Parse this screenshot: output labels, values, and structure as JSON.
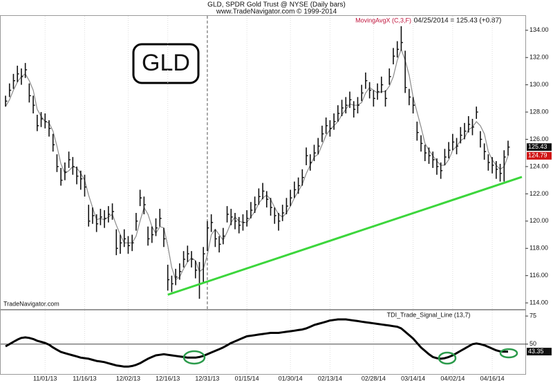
{
  "chart_data": [
    {
      "type": "ohlc",
      "title": "GLD,  SPDR Gold Trust @ NYSE  (Daily bars)",
      "subtitle": "www.TradeNavigator.com © 1999-2014",
      "symbol_box": "GLD",
      "watermark": "TradeNavigator.com",
      "last_label": "04/25/2014 = 125.43 (+0.87)",
      "bar_color": "#111111",
      "ylim": [
        113.6,
        134.8
      ],
      "yticks": [
        {
          "value": 114,
          "label": "114.00"
        },
        {
          "value": 116,
          "label": "116.00"
        },
        {
          "value": 118,
          "label": "118.00"
        },
        {
          "value": 120,
          "label": "120.00"
        },
        {
          "value": 122,
          "label": "122.00"
        },
        {
          "value": 124,
          "label": "124.00"
        },
        {
          "value": 126,
          "label": "126.00"
        },
        {
          "value": 128,
          "label": "128.00"
        },
        {
          "value": 130,
          "label": "130.00"
        },
        {
          "value": 132,
          "label": "132.00"
        },
        {
          "value": 134,
          "label": "134.00"
        }
      ],
      "high": [
        129.2,
        130.1,
        130.8,
        131.4,
        131.2,
        131.6,
        130.1,
        129.2,
        127.8,
        128.0,
        127.9,
        127.4,
        126.4,
        124.9,
        123.9,
        124.3,
        125.1,
        124.7,
        124.0,
        123.7,
        123.4,
        121.2,
        121.0,
        120.5,
        120.9,
        120.8,
        121.1,
        121.3,
        119.4,
        119.0,
        119.4,
        118.9,
        119.0,
        120.6,
        122.3,
        121.8,
        119.6,
        119.6,
        120.2,
        120.9,
        119.5,
        116.8,
        116.0,
        116.5,
        116.9,
        117.8,
        118.2,
        117.8,
        117.1,
        117.0,
        118.1,
        120.0,
        120.5,
        119.4,
        118.9,
        119.5,
        121.1,
        120.9,
        120.6,
        120.3,
        120.5,
        120.8,
        121.4,
        121.8,
        122.4,
        122.8,
        122.2,
        121.7,
        121.0,
        120.6,
        121.2,
        121.7,
        122.3,
        122.9,
        123.2,
        123.8,
        125.4,
        124.9,
        125.6,
        126.1,
        127.0,
        127.6,
        127.4,
        127.9,
        128.5,
        128.9,
        129.1,
        129.5,
        128.8,
        129.1,
        130.0,
        130.9,
        130.2,
        129.6,
        130.1,
        130.6,
        129.6,
        131.2,
        132.7,
        133.2,
        134.3,
        132.5,
        129.7,
        129.1,
        127.3,
        126.3,
        125.6,
        125.4,
        125.1,
        124.6,
        124.3,
        125.3,
        125.8,
        126.4,
        126.1,
        126.9,
        127.2,
        127.7,
        127.5,
        128.4,
        126.6,
        125.7,
        124.9,
        124.7,
        124.4,
        124.2,
        125.2,
        125.9
      ],
      "low": [
        128.4,
        129.1,
        129.7,
        130.2,
        130.0,
        130.5,
        128.7,
        127.9,
        126.6,
        126.9,
        126.8,
        126.2,
        125.1,
        123.6,
        122.6,
        123.0,
        123.9,
        123.4,
        122.7,
        122.3,
        121.8,
        119.6,
        119.8,
        119.2,
        119.7,
        119.5,
        119.9,
        120.1,
        117.5,
        117.6,
        118.1,
        117.6,
        117.8,
        119.3,
        121.1,
        120.5,
        118.2,
        118.4,
        118.9,
        119.6,
        118.1,
        114.9,
        114.8,
        115.3,
        115.7,
        116.6,
        117.0,
        116.6,
        115.8,
        114.3,
        115.5,
        117.8,
        119.2,
        118.1,
        117.7,
        118.3,
        119.9,
        119.7,
        119.4,
        119.1,
        119.3,
        119.6,
        120.2,
        120.6,
        121.2,
        121.6,
        121.0,
        120.4,
        119.8,
        119.3,
        120.0,
        120.5,
        121.1,
        121.7,
        122.0,
        122.6,
        124.1,
        123.7,
        124.4,
        124.9,
        125.8,
        126.4,
        126.2,
        126.7,
        127.3,
        127.7,
        127.9,
        128.3,
        127.6,
        127.9,
        128.8,
        129.7,
        129.0,
        128.4,
        128.9,
        129.4,
        128.4,
        130.0,
        131.5,
        132.0,
        132.5,
        129.4,
        128.5,
        127.9,
        125.9,
        125.1,
        124.4,
        124.2,
        123.9,
        123.4,
        123.1,
        124.1,
        124.6,
        125.2,
        124.9,
        125.7,
        126.0,
        126.5,
        126.3,
        127.5,
        125.4,
        124.5,
        123.7,
        123.5,
        123.1,
        122.9,
        122.9,
        124.8
      ],
      "close": [
        128.8,
        129.6,
        130.3,
        130.8,
        130.6,
        131.1,
        129.2,
        128.5,
        127.0,
        127.5,
        127.3,
        126.8,
        125.6,
        124.0,
        123.0,
        123.6,
        124.5,
        124.0,
        123.3,
        123.1,
        122.5,
        120.0,
        120.4,
        119.8,
        120.3,
        120.2,
        120.5,
        120.7,
        118.0,
        118.4,
        118.7,
        118.2,
        118.4,
        120.0,
        121.7,
        121.2,
        118.7,
        119.0,
        119.5,
        120.2,
        118.7,
        115.7,
        115.4,
        115.9,
        116.3,
        117.2,
        117.6,
        117.2,
        116.4,
        115.4,
        117.6,
        119.5,
        119.9,
        118.7,
        118.3,
        118.9,
        120.5,
        120.3,
        120.0,
        119.7,
        119.9,
        120.2,
        120.8,
        121.2,
        121.8,
        122.2,
        121.6,
        121.0,
        120.4,
        120.0,
        120.6,
        121.1,
        121.7,
        122.3,
        122.6,
        123.2,
        124.8,
        124.3,
        125.0,
        125.5,
        126.4,
        127.0,
        126.8,
        127.3,
        127.9,
        128.3,
        128.5,
        128.9,
        128.2,
        128.5,
        129.4,
        130.3,
        129.6,
        129.0,
        129.5,
        130.0,
        129.0,
        130.6,
        132.1,
        132.6,
        133.1,
        129.8,
        129.1,
        128.5,
        126.5,
        125.7,
        125.0,
        124.8,
        124.5,
        124.0,
        123.7,
        124.7,
        125.2,
        125.8,
        125.5,
        126.3,
        126.6,
        127.1,
        126.9,
        128.0,
        126.0,
        125.1,
        124.3,
        124.1,
        123.8,
        123.5,
        124.7,
        125.43
      ],
      "series": [
        {
          "name": "MovingAvgX (C,3,F)",
          "color": "#8a8a8a",
          "values": [
            128.4,
            128.9,
            129.6,
            130.2,
            130.6,
            130.8,
            130.3,
            129.6,
            128.2,
            127.7,
            127.3,
            127.2,
            126.6,
            125.5,
            124.2,
            123.5,
            123.7,
            124.0,
            123.9,
            123.5,
            123.0,
            121.9,
            121.0,
            120.1,
            120.2,
            120.1,
            120.3,
            120.5,
            119.7,
            119.0,
            118.4,
            118.4,
            118.4,
            118.9,
            120.0,
            121.0,
            120.5,
            119.6,
            119.1,
            119.6,
            119.5,
            118.2,
            116.6,
            115.7,
            115.9,
            116.5,
            117.0,
            117.3,
            117.1,
            116.3,
            116.5,
            117.5,
            119.0,
            119.4,
            119.0,
            118.6,
            119.2,
            119.9,
            120.3,
            120.0,
            119.9,
            119.9,
            120.3,
            120.7,
            121.3,
            121.7,
            121.9,
            121.6,
            121.0,
            120.5,
            120.3,
            120.6,
            121.1,
            121.7,
            122.2,
            122.7,
            123.5,
            124.1,
            124.7,
            124.9,
            125.6,
            126.3,
            126.7,
            127.0,
            127.3,
            127.8,
            128.2,
            128.6,
            128.5,
            128.5,
            128.7,
            129.4,
            129.8,
            129.6,
            129.4,
            129.5,
            129.5,
            129.9,
            130.6,
            131.8,
            132.6,
            131.8,
            130.7,
            129.1,
            128.0,
            126.9,
            125.7,
            125.2,
            124.8,
            124.4,
            124.1,
            124.1,
            124.5,
            125.2,
            125.5,
            125.9,
            126.1,
            126.7,
            126.9,
            127.3,
            127.0,
            126.4,
            125.1,
            124.5,
            124.1,
            123.8,
            124.0,
            124.79
          ]
        }
      ],
      "trendline": {
        "color": "#3cd63c",
        "values": [
          114.6,
          122.9
        ]
      },
      "grid": "vertical"
    },
    {
      "type": "line",
      "categories": [
        null,
        null,
        null,
        null,
        null,
        null,
        null,
        null,
        null,
        null,
        "11/01/13",
        null,
        null,
        null,
        null,
        null,
        null,
        null,
        null,
        null,
        "11/16/13",
        null,
        null,
        null,
        null,
        null,
        null,
        null,
        null,
        null,
        null,
        "12/02/13",
        null,
        null,
        null,
        null,
        null,
        null,
        null,
        null,
        null,
        "12/16/13",
        null,
        null,
        null,
        null,
        null,
        null,
        null,
        null,
        null,
        "12/31/13",
        null,
        null,
        null,
        null,
        null,
        null,
        null,
        null,
        null,
        "01/15/14",
        null,
        null,
        null,
        null,
        null,
        null,
        null,
        null,
        null,
        null,
        "01/30/14",
        null,
        null,
        null,
        null,
        null,
        null,
        null,
        null,
        null,
        "02/13/14",
        null,
        null,
        null,
        null,
        null,
        null,
        null,
        null,
        null,
        null,
        "02/28/14",
        null,
        null,
        null,
        null,
        null,
        null,
        null,
        null,
        null,
        "03/14/14",
        null,
        null,
        null,
        null,
        null,
        null,
        null,
        null,
        null,
        "04/02/14",
        null,
        null,
        null,
        null,
        null,
        null,
        null,
        null,
        null,
        "04/16/14",
        null,
        null,
        null,
        null
      ],
      "ylim": [
        24,
        80
      ],
      "yticks": [
        50,
        75
      ],
      "hline": 50,
      "series": [
        {
          "name": "TDI_Trade_Signal_Line (13,7)",
          "color": "#000000",
          "values": [
            48,
            50,
            52,
            54,
            55.5,
            56,
            55.5,
            54.5,
            53,
            52,
            51,
            49.5,
            47,
            45,
            43,
            42,
            41,
            40,
            39,
            38,
            37.5,
            37,
            36,
            35,
            34.5,
            34,
            33,
            32,
            31,
            30.5,
            30,
            30,
            30.5,
            31.5,
            33,
            35,
            37,
            38.5,
            40,
            40.5,
            41,
            40.5,
            40,
            39.5,
            39,
            38.5,
            38,
            38,
            38,
            38.5,
            39.5,
            41,
            42.5,
            44,
            45.5,
            47,
            49,
            51,
            52.5,
            54,
            55.5,
            57,
            57.5,
            58,
            58.5,
            59,
            59.5,
            60,
            60,
            60,
            60.5,
            61,
            61.5,
            62,
            62.5,
            63,
            64,
            65.5,
            67,
            68,
            69,
            70,
            71,
            71.5,
            72,
            72,
            72,
            71.5,
            71,
            70.5,
            70,
            69.5,
            69,
            68.5,
            68,
            67.5,
            67,
            66.5,
            66,
            65.5,
            64,
            61,
            58,
            55,
            51,
            47,
            44,
            41,
            38.5,
            37.5,
            37,
            37.5,
            38.5,
            40,
            42,
            44,
            46,
            48,
            50,
            50.5,
            50,
            49,
            47.5,
            46,
            44.5,
            43.5,
            43.3,
            43.35
          ]
        }
      ],
      "grid": "vertical"
    }
  ]
}
